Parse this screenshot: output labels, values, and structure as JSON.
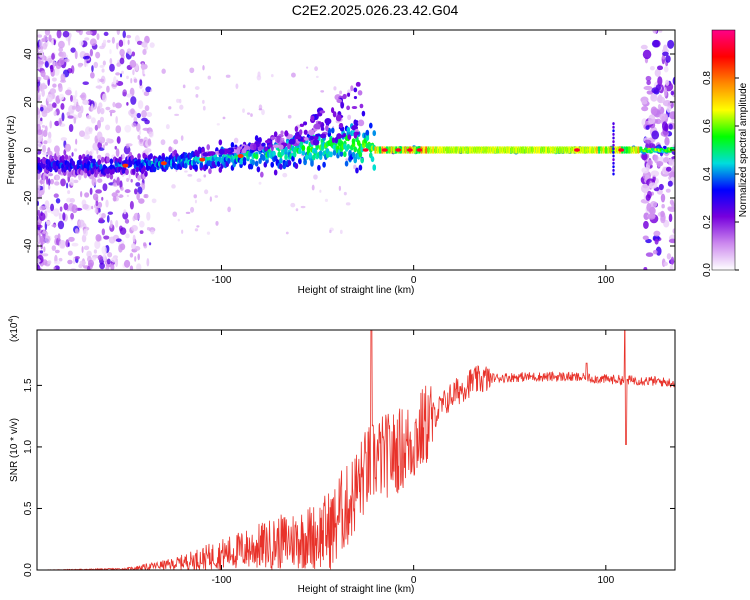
{
  "title": "C2E2.2025.026.23.42.G04",
  "chart_data": [
    {
      "type": "heatmap",
      "xlabel": "Height of straight line (km)",
      "ylabel": "Frequency (Hz)",
      "xlim": [
        -196,
        136
      ],
      "ylim": [
        -50,
        50
      ],
      "xticks": [
        "-100",
        "0",
        "100"
      ],
      "yticks": [
        "-40",
        "-20",
        "0",
        "20",
        "40"
      ],
      "colorbar": {
        "label": "Normalized spectral amplitude",
        "range": [
          0.0,
          1.0
        ],
        "ticks": [
          "0.0",
          "0.2",
          "0.4",
          "0.6",
          "0.8"
        ],
        "colors": [
          "#ffffff",
          "#cc88ee",
          "#7700dd",
          "#0000ff",
          "#00dddd",
          "#00ff00",
          "#ffff00",
          "#ff8800",
          "#ff0000",
          "#ff0088"
        ]
      },
      "ridge": [
        {
          "x": -190,
          "y": -6
        },
        {
          "x": -160,
          "y": -7
        },
        {
          "x": -140,
          "y": -6
        },
        {
          "x": -120,
          "y": -5
        },
        {
          "x": -100,
          "y": -3
        },
        {
          "x": -80,
          "y": -2
        },
        {
          "x": -60,
          "y": 0
        },
        {
          "x": -40,
          "y": 2
        },
        {
          "x": -30,
          "y": 3
        },
        {
          "x": -20,
          "y": 0
        },
        {
          "x": 0,
          "y": 0
        },
        {
          "x": 50,
          "y": 0
        },
        {
          "x": 100,
          "y": 0
        },
        {
          "x": 136,
          "y": 0
        }
      ]
    },
    {
      "type": "line",
      "xlabel": "Height of straight line (km)",
      "ylabel": "SNR (10 * v/v)",
      "multiplier": "(x10",
      "multiplier_exp": "4",
      "multiplier_close": ")",
      "xlim": [
        -196,
        136
      ],
      "ylim": [
        0.0,
        1.95
      ],
      "xticks": [
        "-100",
        "0",
        "100"
      ],
      "yticks": [
        "0.0",
        "0.5",
        "1.0",
        "1.5"
      ],
      "color": "#e8322a",
      "profile": [
        {
          "x": -196,
          "y": 0.0
        },
        {
          "x": -150,
          "y": 0.01
        },
        {
          "x": -140,
          "y": 0.03
        },
        {
          "x": -125,
          "y": 0.06
        },
        {
          "x": -110,
          "y": 0.12
        },
        {
          "x": -90,
          "y": 0.2
        },
        {
          "x": -70,
          "y": 0.28
        },
        {
          "x": -50,
          "y": 0.35
        },
        {
          "x": -35,
          "y": 0.5
        },
        {
          "x": -25,
          "y": 0.8
        },
        {
          "x": -20,
          "y": 0.9
        },
        {
          "x": -10,
          "y": 0.95
        },
        {
          "x": 0,
          "y": 1.05
        },
        {
          "x": 10,
          "y": 1.25
        },
        {
          "x": 20,
          "y": 1.42
        },
        {
          "x": 30,
          "y": 1.53
        },
        {
          "x": 40,
          "y": 1.56
        },
        {
          "x": 60,
          "y": 1.57
        },
        {
          "x": 80,
          "y": 1.57
        },
        {
          "x": 100,
          "y": 1.55
        },
        {
          "x": 120,
          "y": 1.54
        },
        {
          "x": 136,
          "y": 1.52
        }
      ]
    }
  ]
}
